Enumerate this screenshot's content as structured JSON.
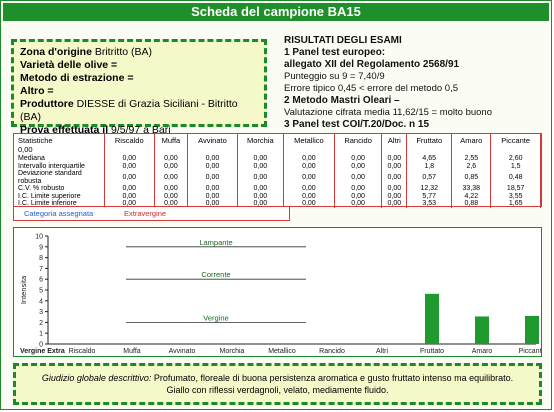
{
  "title": "Scheda del campione BA15",
  "sample": {
    "zona_label": "Zona d'origine",
    "zona_value": "Britritto (BA)",
    "varieta_label": "Varietà delle olive =",
    "varieta_value": "",
    "metodo_label": "Metodo di estrazione =",
    "metodo_value": "",
    "altro_label": "Altro =",
    "altro_value": "",
    "produttore_label": "Produttore",
    "produttore_value": "DIESSE di Grazia Siciliani - Bitritto (BA)",
    "prova_label": "Prova effettuata il",
    "prova_value": "9/5/97  a Bari"
  },
  "results": {
    "header": "RISULTATI DEGLI ESAMI",
    "l1": "1 Panel test europeo:",
    "l2": "allegato XII del Regolamento 2568/91",
    "l3": "Punteggio su 9 = 7,40/9",
    "l4": "Errore tipico 0,45 < errore del metodo 0,5",
    "l5": "2 Metodo Mastri Oleari –",
    "l6": "Valutazione cifrata media 11,62/15 = molto buono",
    "l7": "3 Panel test COI/T.20/Doc. n 15"
  },
  "table": {
    "header_l1": "Statistiche",
    "header_l2": "0,00",
    "columns": [
      "Riscaldo",
      "Muffa",
      "Avvinato",
      "Morchia",
      "Metallico",
      "Rancido",
      "Altri",
      "Fruttato",
      "Amaro",
      "Piccante"
    ],
    "rows": [
      {
        "label": "Mediana",
        "values": [
          "0,00",
          "0,00",
          "0,00",
          "0,00",
          "0,00",
          "0,00",
          "0,00",
          "4,65",
          "2,55",
          "2,60"
        ]
      },
      {
        "label": "Intervallo interquartile",
        "values": [
          "0,00",
          "0,00",
          "0,00",
          "0,00",
          "0,00",
          "0,00",
          "0,00",
          "1,8",
          "2,6",
          "1,5"
        ]
      },
      {
        "label": "Deviazione standard robusta",
        "values": [
          "0,00",
          "0,00",
          "0,00",
          "0,00",
          "0,00",
          "0,00",
          "0,00",
          "0,57",
          "0,85",
          "0,48"
        ]
      },
      {
        "label": "C.V. % robusto",
        "values": [
          "0,00",
          "0,00",
          "0,00",
          "0,00",
          "0,00",
          "0,00",
          "0,00",
          "12,32",
          "33,38",
          "18,57"
        ]
      },
      {
        "label": "I.C. Limite superiore",
        "values": [
          "0,00",
          "0,00",
          "0,00",
          "0,00",
          "0,00",
          "0,00",
          "0,00",
          "5,77",
          "4,22",
          "3,55"
        ]
      },
      {
        "label": "I.C. Limite inferiore",
        "values": [
          "0,00",
          "0,00",
          "0,00",
          "0,00",
          "0,00",
          "0,00",
          "0,00",
          "3,53",
          "0,88",
          "1,65"
        ]
      }
    ],
    "categoria_label": "Categoria assegnata",
    "categoria_value": "Extravergine"
  },
  "chart_data": {
    "type": "bar",
    "categories": [
      "Riscaldo",
      "Muffa",
      "Avvinato",
      "Morchia",
      "Metallico",
      "Rancido",
      "Altri",
      "Fruttato",
      "Amaro",
      "Piccante"
    ],
    "values": [
      0,
      0,
      0,
      0,
      0,
      0,
      0,
      4.65,
      2.55,
      2.6
    ],
    "ylabel": "Intensita",
    "ylim": [
      0,
      10
    ],
    "yticks": [
      0,
      1,
      2,
      3,
      4,
      5,
      6,
      7,
      8,
      9,
      10
    ],
    "xlabel_left": "Vergine Extra",
    "thresholds": [
      {
        "label": "Lampante",
        "value": 9
      },
      {
        "label": "Corrente",
        "value": 6
      },
      {
        "label": "Vergine",
        "value": 2
      }
    ],
    "bar_color": "#1f9a2e"
  },
  "verdict": {
    "label": "Giudizio globale descrittivo:",
    "text1": "Profumato, floreale di buona persistenza aromatica e gusto fruttato intenso ma equilibrato.",
    "text2": "Giallo con riflessi verdagnoli, velato, mediamente fluido."
  }
}
